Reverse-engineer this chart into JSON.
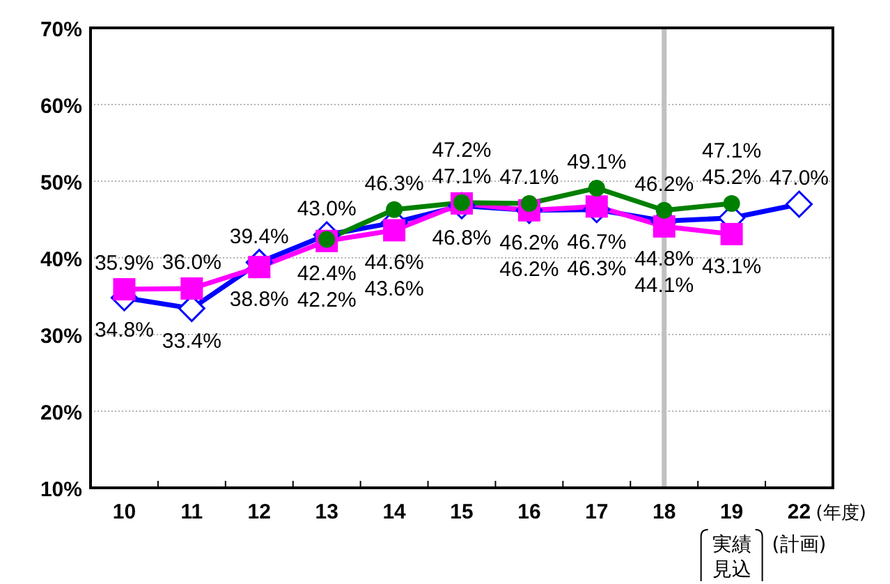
{
  "chart_data": {
    "type": "line",
    "categories": [
      "10",
      "11",
      "12",
      "13",
      "14",
      "15",
      "16",
      "17",
      "18",
      "19",
      "22"
    ],
    "ylim": [
      10,
      70
    ],
    "yticks": [
      {
        "value": 10,
        "label": "10%"
      },
      {
        "value": 20,
        "label": "20%"
      },
      {
        "value": 30,
        "label": "30%"
      },
      {
        "value": 40,
        "label": "40%"
      },
      {
        "value": 50,
        "label": "50%"
      },
      {
        "value": 60,
        "label": "60%"
      },
      {
        "value": 70,
        "label": "70%"
      }
    ],
    "grid": "y",
    "line_style": "solid",
    "series": [
      {
        "color": "#0000ff",
        "marker": "diamond",
        "values": [
          34.8,
          33.4,
          39.4,
          43.0,
          44.6,
          46.8,
          46.2,
          46.3,
          44.8,
          45.2,
          47.0
        ],
        "value_labels": [
          "34.8%",
          "33.4%",
          "39.4%",
          "43.0%",
          "44.6%",
          "46.8%",
          "46.2%",
          "46.3%",
          "44.8%",
          "45.2%",
          "47.0%"
        ]
      },
      {
        "color": "#ff00ff",
        "marker": "square",
        "values": [
          35.9,
          36.0,
          38.8,
          42.2,
          43.6,
          47.1,
          46.2,
          46.7,
          44.1,
          43.1,
          null
        ],
        "value_labels": [
          "35.9%",
          "36.0%",
          "38.8%",
          "42.2%",
          "43.6%",
          "47.1%",
          "46.2%",
          "46.7%",
          "44.1%",
          "43.1%",
          null
        ]
      },
      {
        "color": "#008000",
        "marker": "circle",
        "values": [
          null,
          null,
          null,
          42.4,
          46.3,
          47.2,
          47.1,
          49.1,
          46.2,
          47.1,
          null
        ],
        "value_labels": [
          null,
          null,
          null,
          "42.4%",
          "46.3%",
          "47.2%",
          "47.1%",
          "49.1%",
          "46.2%",
          "47.1%",
          null
        ]
      }
    ],
    "ref_lines": [
      {
        "axis": "x",
        "value": "18",
        "color": "#c0c0c0"
      }
    ],
    "annotations": [
      "(年度)",
      "実績見込",
      "(計画)"
    ]
  }
}
